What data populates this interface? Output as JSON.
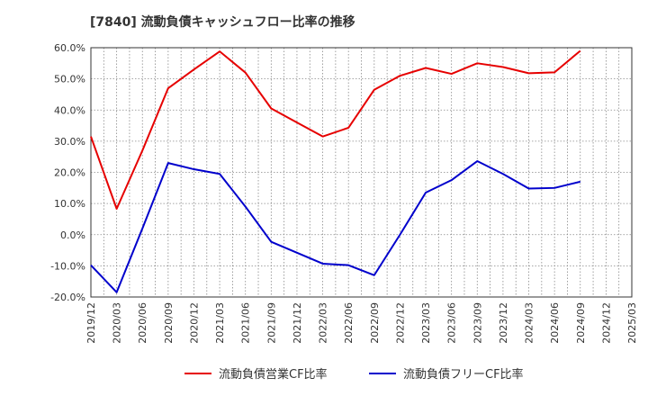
{
  "chart_data": {
    "type": "line",
    "title": "[7840]  流動負債キャッシュフロー比率の推移",
    "xlabel": "",
    "ylabel": "",
    "ylim": [
      -20,
      60
    ],
    "yticks": [
      "60.0%",
      "50.0%",
      "40.0%",
      "30.0%",
      "20.0%",
      "10.0%",
      "0.0%",
      "-10.0%",
      "-20.0%"
    ],
    "ytick_values": [
      60,
      50,
      40,
      30,
      20,
      10,
      0,
      -10,
      -20
    ],
    "xticks": [
      "2019/12",
      "2020/03",
      "2020/06",
      "2020/09",
      "2020/12",
      "2021/03",
      "2021/06",
      "2021/09",
      "2021/12",
      "2022/03",
      "2022/06",
      "2022/09",
      "2022/12",
      "2023/03",
      "2023/06",
      "2023/09",
      "2023/12",
      "2024/03",
      "2024/06",
      "2024/09",
      "2024/12",
      "2025/03"
    ],
    "grid": true,
    "legend_position": "bottom",
    "series": [
      {
        "name": "流動負債営業CF比率",
        "color": "#e60000",
        "x": [
          "2019/12",
          "2020/03",
          "2020/06",
          "2020/09",
          "2020/12",
          "2021/03",
          "2021/06",
          "2021/09",
          "2021/12",
          "2022/03",
          "2022/06",
          "2022/09",
          "2022/12",
          "2023/03",
          "2023/06",
          "2023/09",
          "2023/12",
          "2024/03",
          "2024/06",
          "2024/09"
        ],
        "values": [
          31.5,
          8.3,
          27.0,
          47.0,
          53.0,
          58.8,
          52.0,
          40.5,
          36.0,
          31.5,
          34.3,
          46.5,
          51.0,
          53.5,
          51.6,
          55.0,
          53.8,
          51.8,
          52.1,
          59.0
        ]
      },
      {
        "name": "流動負債フリーCF比率",
        "color": "#0000cc",
        "x": [
          "2019/12",
          "2020/03",
          "2020/06",
          "2020/09",
          "2020/12",
          "2021/03",
          "2021/06",
          "2021/09",
          "2021/12",
          "2022/03",
          "2022/06",
          "2022/09",
          "2022/12",
          "2023/03",
          "2023/06",
          "2023/09",
          "2023/12",
          "2024/03",
          "2024/06",
          "2024/09"
        ],
        "values": [
          -9.8,
          -18.5,
          2.0,
          23.0,
          21.0,
          19.5,
          9.0,
          -2.3,
          -5.8,
          -9.3,
          -9.8,
          -13.0,
          0.0,
          13.5,
          17.5,
          23.6,
          19.5,
          14.8,
          15.0,
          17.0
        ]
      }
    ]
  }
}
